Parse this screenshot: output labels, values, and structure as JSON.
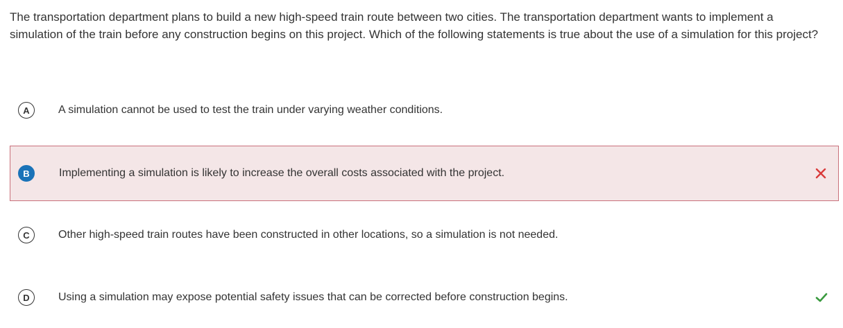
{
  "question": {
    "text": "The transportation department plans to build a new high-speed train route between two cities. The transportation department wants to implement a simulation of the train before any construction begins on this project. Which of the following statements is true about the use of a simulation for this project?"
  },
  "options": [
    {
      "letter": "A",
      "text": "A simulation cannot be used to test the train under varying weather conditions.",
      "state": "none"
    },
    {
      "letter": "B",
      "text": "Implementing a simulation is likely to increase the overall costs associated with the project.",
      "state": "selected-incorrect",
      "mark_icon": "x-icon"
    },
    {
      "letter": "C",
      "text": "Other high-speed train routes have been constructed in other locations, so a simulation is not needed.",
      "state": "none"
    },
    {
      "letter": "D",
      "text": "Using a simulation may expose potential safety issues that can be corrected before construction begins.",
      "state": "correct",
      "mark_icon": "check-icon"
    }
  ],
  "colors": {
    "selected_bg": "#f4e6e7",
    "selected_border": "#c9707b",
    "selected_letter_bg": "#1a73b8",
    "incorrect_mark": "#d93a3a",
    "correct_mark": "#3a9a3f"
  }
}
